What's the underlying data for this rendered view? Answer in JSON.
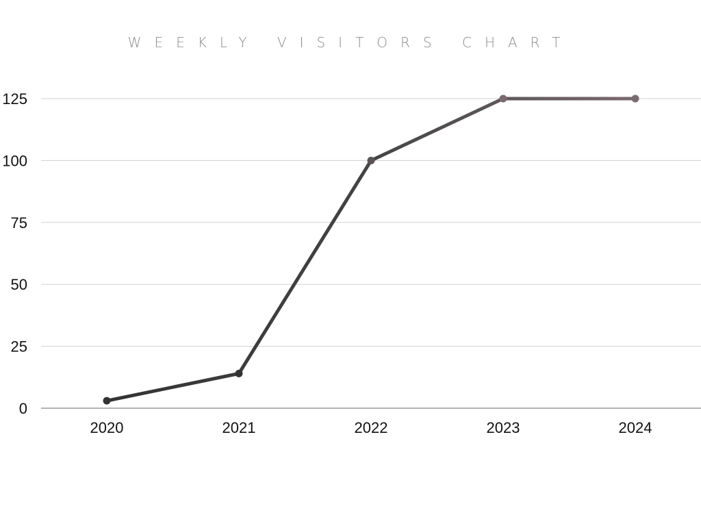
{
  "chart_data": {
    "type": "line",
    "title": "WEEKLY VISITORS CHART",
    "xlabel": "",
    "ylabel": "",
    "categories": [
      "2020",
      "2021",
      "2022",
      "2023",
      "2024"
    ],
    "series": [
      {
        "values": [
          3,
          14,
          100,
          125,
          125
        ]
      }
    ],
    "ylim": [
      0,
      125
    ],
    "yticks": [
      0,
      25,
      50,
      75,
      100,
      125
    ],
    "grid": true,
    "legend": "none",
    "colors": {
      "line_start": "#333333",
      "line_end": "#7a6a70",
      "grid": "#d0d0d0",
      "axis": "#999999"
    }
  }
}
